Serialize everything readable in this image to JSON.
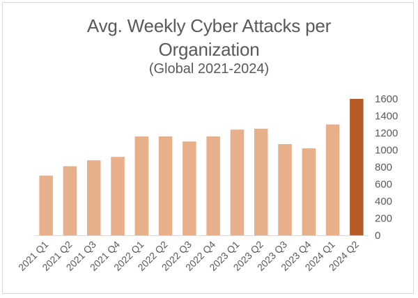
{
  "chart_data": {
    "type": "bar",
    "title": "Avg. Weekly Cyber Attacks per Organization",
    "title_line1": "Avg. Weekly Cyber Attacks per",
    "title_line2": "Organization",
    "subtitle": "(Global 2021-2024)",
    "xlabel": "",
    "ylabel": "",
    "categories": [
      "2021 Q1",
      "2021 Q2",
      "2021 Q3",
      "2021 Q4",
      "2022 Q1",
      "2022 Q2",
      "2022 Q3",
      "2022 Q4",
      "2023 Q1",
      "2023 Q2",
      "2023 Q3",
      "2023 Q4",
      "2024 Q1",
      "2024 Q2"
    ],
    "values": [
      700,
      810,
      880,
      920,
      1160,
      1160,
      1100,
      1160,
      1240,
      1250,
      1070,
      1020,
      1300,
      1600
    ],
    "ylim": [
      0,
      1600
    ],
    "yticks": [
      0,
      200,
      400,
      600,
      800,
      1000,
      1200,
      1400,
      1600
    ],
    "yaxis_position": "right",
    "grid": false,
    "legend": null,
    "colors": {
      "default_bar": "#E8B08A",
      "highlight_bar": "#B85C27",
      "text": "#595959",
      "axis": "#d9d9d9"
    },
    "highlight_index": 13
  }
}
